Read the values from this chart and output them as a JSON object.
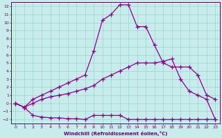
{
  "x": [
    0,
    1,
    2,
    3,
    4,
    5,
    6,
    7,
    8,
    9,
    10,
    11,
    12,
    13,
    14,
    15,
    16,
    17,
    18,
    19,
    20,
    21,
    22,
    23
  ],
  "y_top": [
    0.0,
    -0.5,
    0.5,
    1.0,
    1.5,
    2.0,
    2.5,
    3.0,
    3.5,
    6.5,
    10.3,
    11.0,
    12.2,
    12.2,
    9.5,
    9.5,
    7.2,
    5.0,
    4.5,
    4.5,
    4.5,
    3.5,
    1.0,
    0.5
  ],
  "y_mid": [
    0.0,
    -0.5,
    0.0,
    0.5,
    0.8,
    1.0,
    1.2,
    1.5,
    1.8,
    2.2,
    3.0,
    3.5,
    4.0,
    4.5,
    5.0,
    5.0,
    5.0,
    5.2,
    5.5,
    3.0,
    1.5,
    1.0,
    0.5,
    -2.0
  ],
  "y_bot": [
    0.0,
    -0.5,
    -1.5,
    -1.7,
    -1.8,
    -1.8,
    -1.9,
    -1.9,
    -2.0,
    -1.5,
    -1.5,
    -1.5,
    -1.5,
    -2.0,
    -2.0,
    -2.0,
    -2.0,
    -2.0,
    -2.0,
    -2.0,
    -2.0,
    -2.0,
    -2.0,
    -2.0
  ],
  "color": "#880088",
  "bg_color": "#c8ecec",
  "grid_color": "#a0d0d0",
  "xlabel": "Windchill (Refroidissement éolien,°C)",
  "xlim": [
    -0.5,
    23.5
  ],
  "ylim": [
    -2.5,
    12.5
  ],
  "yticks": [
    -2,
    -1,
    0,
    1,
    2,
    3,
    4,
    5,
    6,
    7,
    8,
    9,
    10,
    11,
    12
  ],
  "xticks": [
    0,
    1,
    2,
    3,
    4,
    5,
    6,
    7,
    8,
    9,
    10,
    11,
    12,
    13,
    14,
    15,
    16,
    17,
    18,
    19,
    20,
    21,
    22,
    23
  ],
  "marker": "+",
  "markersize": 4,
  "linewidth": 0.9,
  "label_color": "#660066",
  "axis_color": "#660066",
  "xlabel_fontsize": 5.0,
  "tick_fontsize": 4.5
}
